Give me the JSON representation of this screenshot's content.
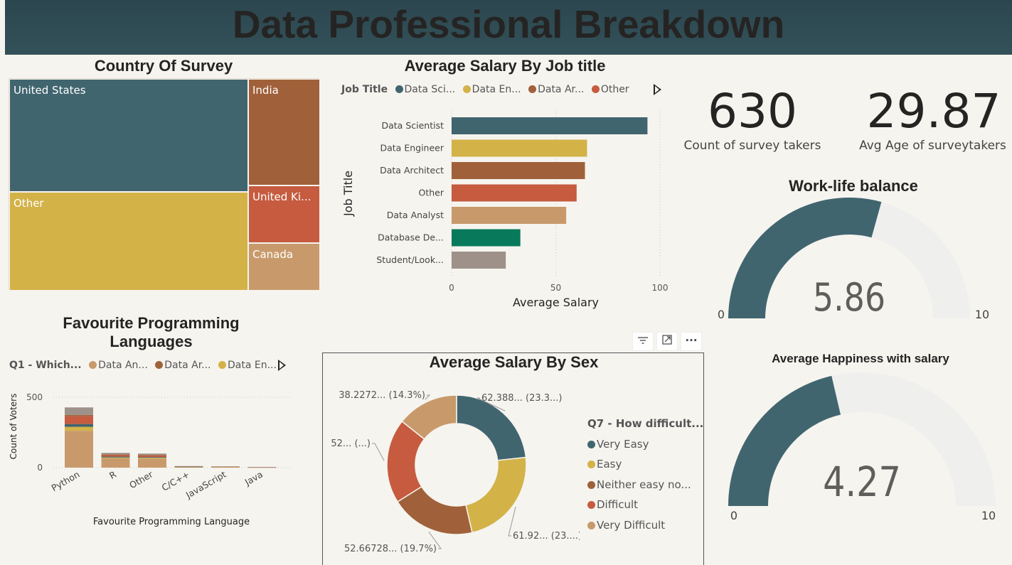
{
  "header": {
    "title": "Data Professional Breakdown"
  },
  "treemap": {
    "title": "Country Of Survey",
    "cells": [
      {
        "label": "United States",
        "color": "#41656f"
      },
      {
        "label": "India",
        "color": "#a0613a"
      },
      {
        "label": "Other",
        "color": "#d3b248"
      },
      {
        "label": "United Ki...",
        "color": "#c65b3f"
      },
      {
        "label": "Canada",
        "color": "#c89a6b"
      }
    ]
  },
  "salary_job": {
    "title": "Average Salary By Job title",
    "legend": {
      "title": "Job Title",
      "items": [
        {
          "label": "Data Sci...",
          "color": "#41656f"
        },
        {
          "label": "Data En...",
          "color": "#d3b248"
        },
        {
          "label": "Data Ar...",
          "color": "#a0613a"
        },
        {
          "label": "Other",
          "color": "#c65b3f"
        }
      ]
    }
  },
  "kpis": [
    {
      "value": "630",
      "label": "Count of survey takers"
    },
    {
      "value": "29.87",
      "label": "Avg Age of surveytakers"
    }
  ],
  "gauges": [
    {
      "title": "Work-life balance",
      "value": 5.86,
      "value_label": "5.86",
      "min": 0,
      "max": 10,
      "min_label": "0",
      "max_label": "10",
      "fill_color": "#41656f",
      "track_color": "#efefee"
    },
    {
      "title": "Average Happiness with salary",
      "value": 4.27,
      "value_label": "4.27",
      "min": 0,
      "max": 10,
      "min_label": "0",
      "max_label": "10",
      "fill_color": "#41656f",
      "track_color": "#efefee"
    }
  ],
  "languages": {
    "title_line1": "Favourite Programming",
    "title_line2": "Languages",
    "legend": {
      "title": "Q1 - Which...",
      "items": [
        {
          "label": "Data An...",
          "color": "#c89a6b"
        },
        {
          "label": "Data Ar...",
          "color": "#a0613a"
        },
        {
          "label": "Data En...",
          "color": "#d3b248"
        }
      ]
    }
  },
  "salary_sex": {
    "title": "Average Salary By Sex",
    "legend": {
      "title": "Q7 - How difficult...",
      "items": [
        {
          "label": "Very Easy",
          "color": "#41656f"
        },
        {
          "label": "Easy",
          "color": "#d3b248"
        },
        {
          "label": "Neither easy no...",
          "color": "#a0613a"
        },
        {
          "label": "Difficult",
          "color": "#c65b3f"
        },
        {
          "label": "Very Difficult",
          "color": "#c89a6b"
        }
      ]
    }
  },
  "toolbar": {
    "filter_icon": "filter-icon",
    "focus_icon": "focus-mode-icon",
    "more_icon": "more-options-icon"
  },
  "chart_data": [
    {
      "type": "bar",
      "orientation": "horizontal",
      "title": "Average Salary By Job title",
      "xlabel": "Average Salary",
      "ylabel": "Job Title",
      "xlim": [
        0,
        100
      ],
      "xticks": [
        "0",
        "50",
        "100"
      ],
      "categories": [
        "Data Scientist",
        "Data Engineer",
        "Data Architect",
        "Other",
        "Data Analyst",
        "Database De...",
        "Student/Look..."
      ],
      "values": [
        94,
        65,
        64,
        60,
        55,
        33,
        26
      ],
      "colors": [
        "#41656f",
        "#d3b248",
        "#a0613a",
        "#c65b3f",
        "#c89a6b",
        "#087a5b",
        "#9e918a"
      ],
      "grid": true
    },
    {
      "type": "bar",
      "stacked": true,
      "title": "Favourite Programming Languages",
      "xlabel": "Favourite Programming Language",
      "ylabel": "Count of Voters",
      "ylim": [
        0,
        500
      ],
      "yticks": [
        "0",
        "500"
      ],
      "categories": [
        "Python",
        "R",
        "Other",
        "C/C++",
        "JavaScript",
        "Java"
      ],
      "series": [
        {
          "name": "Data An...",
          "color": "#c89a6b",
          "values": [
            262,
            66,
            64,
            6,
            5,
            3
          ]
        },
        {
          "name": "",
          "color": "#d3b248",
          "values": [
            28,
            6,
            6,
            1,
            1,
            0
          ]
        },
        {
          "name": "",
          "color": "#41656f",
          "values": [
            20,
            6,
            5,
            1,
            0,
            0
          ]
        },
        {
          "name": "",
          "color": "#c65b3f",
          "values": [
            55,
            12,
            12,
            2,
            2,
            1
          ]
        },
        {
          "name": "",
          "color": "#a0613a",
          "values": [
            10,
            3,
            3,
            0,
            0,
            0
          ]
        },
        {
          "name": "",
          "color": "#9e918a",
          "values": [
            53,
            12,
            10,
            1,
            1,
            1
          ]
        }
      ],
      "grid": true
    },
    {
      "type": "pie",
      "donut": true,
      "title": "Average Salary By Sex",
      "slices": [
        {
          "name": "Very Easy",
          "value": 23.3,
          "label": "62.388... (23.3...)",
          "color": "#41656f"
        },
        {
          "name": "Easy",
          "value": 23.1,
          "label": "61.92... (23....)",
          "color": "#d3b248"
        },
        {
          "name": "Neither easy no...",
          "value": 19.7,
          "label": "52.66728... (19.7%)",
          "color": "#a0613a"
        },
        {
          "name": "Difficult",
          "value": 19.6,
          "label": "52... (...)",
          "color": "#c65b3f"
        },
        {
          "name": "Very Difficult",
          "value": 14.3,
          "label": "38.2272... (14.3%)",
          "color": "#c89a6b"
        }
      ],
      "legend_position": "right"
    }
  ]
}
